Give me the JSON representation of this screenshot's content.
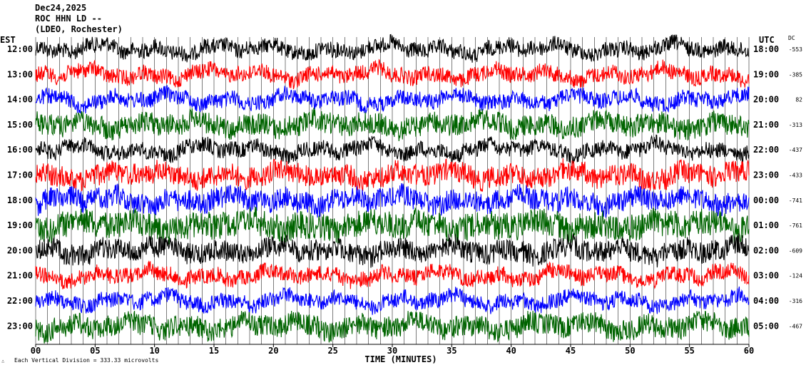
{
  "header": {
    "date": "Dec24,2025",
    "station": "ROC HHN LD --",
    "network": "(LDEO, Rochester)"
  },
  "labels": {
    "left_tz": "EST",
    "right_tz": "UTC",
    "dc": "DC",
    "xlabel": "TIME (MINUTES)",
    "scale_note": "Each Vertical Division =  333.33 microvolts"
  },
  "colors": {
    "trace_cycle": [
      "#000000",
      "#ff0000",
      "#0000ff",
      "#006400"
    ],
    "grid": "#000000"
  },
  "chart_data": {
    "type": "line",
    "title": "",
    "xlabel": "TIME (MINUTES)",
    "xlim": [
      0,
      60
    ],
    "x_ticks": [
      "00",
      "05",
      "10",
      "15",
      "20",
      "25",
      "30",
      "35",
      "40",
      "45",
      "50",
      "55",
      "60"
    ],
    "rows": [
      {
        "est": "12:00",
        "utc": "18:00",
        "dc": "-553"
      },
      {
        "est": "13:00",
        "utc": "19:00",
        "dc": "-385"
      },
      {
        "est": "14:00",
        "utc": "20:00",
        "dc": "82"
      },
      {
        "est": "15:00",
        "utc": "21:00",
        "dc": "-313"
      },
      {
        "est": "16:00",
        "utc": "22:00",
        "dc": "-437"
      },
      {
        "est": "17:00",
        "utc": "23:00",
        "dc": "-433"
      },
      {
        "est": "18:00",
        "utc": "00:00",
        "dc": "-741"
      },
      {
        "est": "19:00",
        "utc": "01:00",
        "dc": "-761"
      },
      {
        "est": "20:00",
        "utc": "02:00",
        "dc": "-609"
      },
      {
        "est": "21:00",
        "utc": "03:00",
        "dc": "-124"
      },
      {
        "est": "22:00",
        "utc": "04:00",
        "dc": "-316"
      },
      {
        "est": "23:00",
        "utc": "05:00",
        "dc": "-467"
      }
    ]
  }
}
